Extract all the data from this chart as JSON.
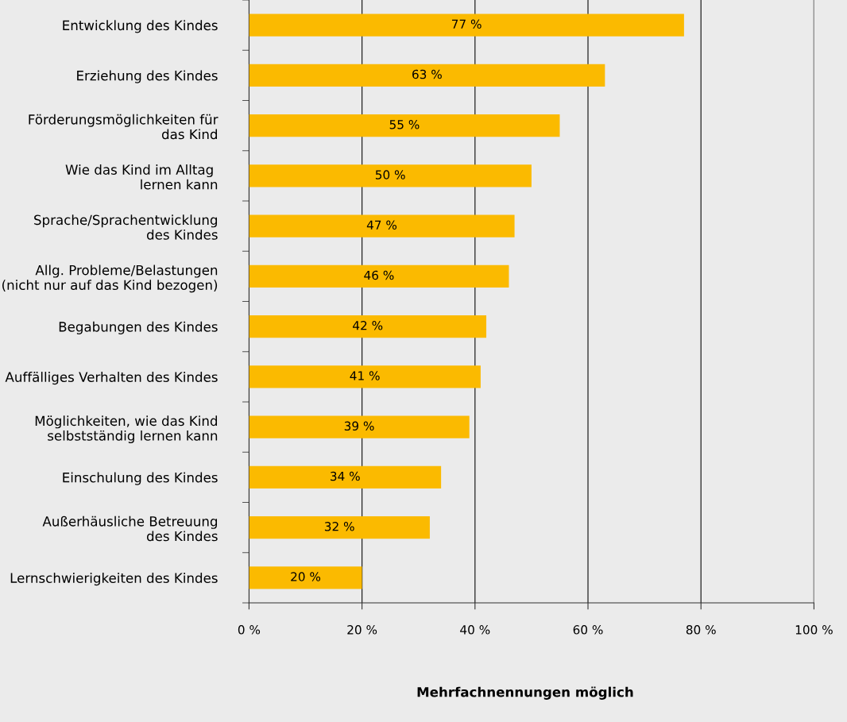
{
  "chart_data": {
    "type": "bar",
    "orientation": "horizontal",
    "categories": [
      "Entwicklung des Kindes",
      "Erziehung des Kindes",
      "Förderungsmöglichkeiten für\ndas Kind",
      "Wie das Kind im Alltag \nlernen kann",
      "Sprache/Sprachentwicklung\ndes Kindes",
      "Allg. Probleme/Belastungen\n(nicht nur auf das Kind bezogen)",
      "Begabungen des Kindes",
      "Auffälliges Verhalten des Kindes",
      "Möglichkeiten, wie das Kind\nselbstständig lernen kann",
      "Einschulung des Kindes",
      "Außerhäusliche Betreuung\ndes Kindes",
      "Lernschwierigkeiten des Kindes"
    ],
    "values": [
      77,
      63,
      55,
      50,
      47,
      46,
      42,
      41,
      39,
      34,
      32,
      20
    ],
    "value_labels": [
      "77 %",
      "63 %",
      "55 %",
      "50 %",
      "47 %",
      "46 %",
      "42 %",
      "41 %",
      "39 %",
      "34 %",
      "32 %",
      "20 %"
    ],
    "color": "#fbba00",
    "xlim": [
      0,
      100
    ],
    "xticks": [
      {
        "value": 0,
        "label": "0 %"
      },
      {
        "value": 20,
        "label": "20 %"
      },
      {
        "value": 40,
        "label": "40 %"
      },
      {
        "value": 60,
        "label": "60 %"
      },
      {
        "value": 80,
        "label": "80 %"
      },
      {
        "value": 100,
        "label": "100 %"
      }
    ],
    "annotations": [
      "Mehrfachnennungen möglich"
    ],
    "grid": "x"
  }
}
